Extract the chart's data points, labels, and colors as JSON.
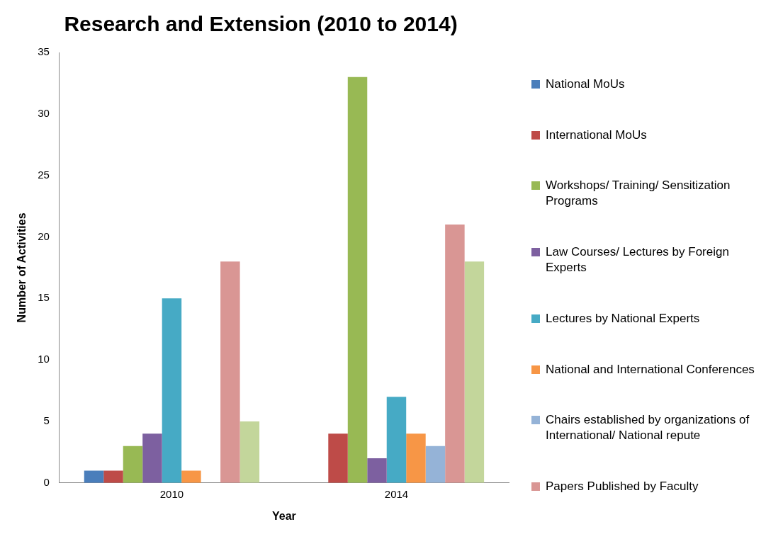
{
  "chart_data": {
    "type": "bar",
    "title": "Research and Extension (2010 to 2014)",
    "xlabel": "Year",
    "ylabel": "Number of Activities",
    "categories": [
      "2010",
      "2014"
    ],
    "ylim": [
      0,
      35
    ],
    "yticks": [
      0,
      5,
      10,
      15,
      20,
      25,
      30,
      35
    ],
    "grid": false,
    "legend": "right",
    "series": [
      {
        "name": "National MoUs",
        "color": "#4a7ebb",
        "values": [
          1,
          0
        ]
      },
      {
        "name": "International MoUs",
        "color": "#be4b48",
        "values": [
          1,
          4
        ]
      },
      {
        "name": "Workshops/ Training/ Sensitization Programs",
        "color": "#98b954",
        "values": [
          3,
          33
        ]
      },
      {
        "name": "Law Courses/ Lectures by Foreign Experts",
        "color": "#7d60a0",
        "values": [
          4,
          2
        ]
      },
      {
        "name": " Lectures by National Experts",
        "color": "#46aac5",
        "values": [
          15,
          7
        ]
      },
      {
        "name": "National and International Conferences",
        "color": "#f79646",
        "values": [
          1,
          4
        ]
      },
      {
        "name": "Chairs established by organizations of International/ National repute",
        "color": "#95b3d7",
        "values": [
          0,
          3
        ]
      },
      {
        "name": "Papers Published by Faculty",
        "color": "#d99694",
        "values": [
          18,
          21
        ]
      },
      {
        "color": "#c3d69b",
        "values": [
          5,
          18
        ]
      }
    ]
  }
}
